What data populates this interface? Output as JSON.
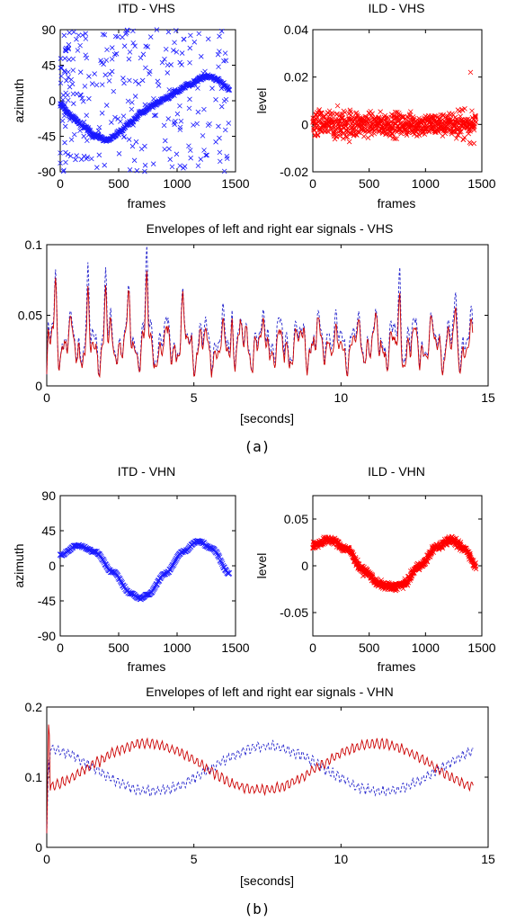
{
  "captions": {
    "a": "(a)",
    "b": "(b)"
  },
  "colors": {
    "itd_marker": "#1a1aff",
    "ild_marker": "#ff0000",
    "left_env": "#2222cc",
    "right_env": "#cc0000"
  },
  "chart_data": [
    {
      "id": "itd_vhs",
      "type": "scatter",
      "title": "ITD - VHS",
      "xlabel": "frames",
      "ylabel": "azimuth",
      "xlim": [
        0,
        1500
      ],
      "ylim": [
        -90,
        90
      ],
      "xticks": [
        0,
        500,
        1000,
        1500
      ],
      "yticks": [
        -90,
        -45,
        0,
        45,
        90
      ],
      "marker": "x",
      "color": "#1a1aff",
      "trend": {
        "x": [
          0,
          100,
          200,
          300,
          400,
          450,
          500,
          600,
          700,
          800,
          900,
          1000,
          1100,
          1200,
          1250,
          1300,
          1350,
          1400,
          1450
        ],
        "y": [
          -5,
          -20,
          -33,
          -44,
          -50,
          -47,
          -40,
          -27,
          -15,
          -5,
          3,
          12,
          20,
          28,
          31,
          30,
          26,
          20,
          14
        ]
      },
      "outliers": "widely scattered points across full azimuth range, densest for frames 0-700"
    },
    {
      "id": "ild_vhs",
      "type": "scatter",
      "title": "ILD - VHS",
      "xlabel": "frames",
      "ylabel": "level",
      "xlim": [
        0,
        1500
      ],
      "ylim": [
        -0.02,
        0.04
      ],
      "xticks": [
        0,
        500,
        1000,
        1500
      ],
      "yticks": [
        -0.02,
        0,
        0.02,
        0.04
      ],
      "marker": "x",
      "color": "#ff0000",
      "center": 0,
      "spread": 0.005,
      "peak": {
        "x": 1400,
        "y": 0.022
      }
    },
    {
      "id": "env_vhs",
      "type": "line",
      "title": "Envelopes of left and right ear signals - VHS",
      "xlabel": "[seconds]",
      "ylabel": "",
      "xlim": [
        0,
        15
      ],
      "ylim": [
        0,
        0.1
      ],
      "xticks": [
        0,
        5,
        10,
        15
      ],
      "yticks": [
        0,
        0.05,
        0.1
      ],
      "duration": 14.5,
      "peaks": [
        {
          "t": 0.3,
          "v": 0.073
        },
        {
          "t": 1.4,
          "v": 0.069
        },
        {
          "t": 2.0,
          "v": 0.08
        },
        {
          "t": 2.8,
          "v": 0.058
        },
        {
          "t": 3.4,
          "v": 0.097
        },
        {
          "t": 4.6,
          "v": 0.055
        },
        {
          "t": 6.3,
          "v": 0.058
        },
        {
          "t": 7.5,
          "v": 0.055
        },
        {
          "t": 9.6,
          "v": 0.056
        },
        {
          "t": 12.0,
          "v": 0.078
        },
        {
          "t": 13.9,
          "v": 0.062
        }
      ],
      "series": [
        {
          "style": "dashed",
          "color": "#2222cc"
        },
        {
          "style": "solid",
          "color": "#cc0000"
        }
      ]
    },
    {
      "id": "itd_vhn",
      "type": "scatter",
      "title": "ITD - VHN",
      "xlabel": "frames",
      "ylabel": "azimuth",
      "xlim": [
        0,
        1500
      ],
      "ylim": [
        -90,
        90
      ],
      "xticks": [
        0,
        500,
        1000,
        1500
      ],
      "yticks": [
        -90,
        -45,
        0,
        45,
        90
      ],
      "marker": "x",
      "color": "#1a1aff",
      "trend": {
        "x": [
          0,
          150,
          300,
          450,
          600,
          680,
          750,
          900,
          1050,
          1180,
          1300,
          1450
        ],
        "y": [
          14,
          26,
          18,
          -8,
          -35,
          -42,
          -37,
          -10,
          18,
          32,
          22,
          -10
        ]
      }
    },
    {
      "id": "ild_vhn",
      "type": "scatter",
      "title": "ILD - VHN",
      "xlabel": "frames",
      "ylabel": "level",
      "xlim": [
        0,
        1500
      ],
      "ylim": [
        -0.075,
        0.075
      ],
      "xticks": [
        0,
        500,
        1000,
        1500
      ],
      "yticks": [
        -0.05,
        0,
        0.05
      ],
      "marker": "x",
      "color": "#ff0000",
      "trend": {
        "x": [
          0,
          150,
          300,
          450,
          600,
          700,
          800,
          950,
          1100,
          1220,
          1350,
          1450
        ],
        "y": [
          0.022,
          0.028,
          0.018,
          -0.005,
          -0.02,
          -0.023,
          -0.02,
          0.0,
          0.02,
          0.028,
          0.018,
          0.0
        ]
      }
    },
    {
      "id": "env_vhn",
      "type": "line",
      "title": "Envelopes of left and right ear signals - VHN",
      "xlabel": "[seconds]",
      "ylabel": "",
      "xlim": [
        0,
        15
      ],
      "ylim": [
        0,
        0.2
      ],
      "xticks": [
        0,
        5,
        10,
        15
      ],
      "yticks": [
        0,
        0.1,
        0.2
      ],
      "duration": 14.5,
      "series": [
        {
          "style": "dashed",
          "color": "#2222cc",
          "mean": 0.112,
          "amp": 0.032,
          "phase_shift_s": 0,
          "period_s": 7.8,
          "start_peak_s": 7.5
        },
        {
          "style": "solid",
          "color": "#cc0000",
          "mean": 0.115,
          "amp": 0.033,
          "period_s": 7.8,
          "start_peak_s": 3.4
        }
      ]
    }
  ]
}
